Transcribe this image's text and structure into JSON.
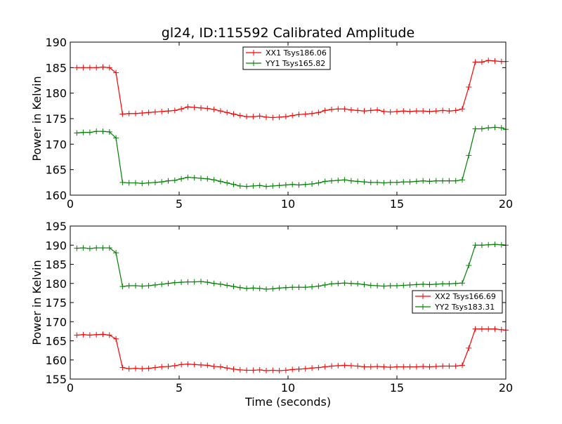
{
  "chart_data": [
    {
      "type": "line",
      "title": "gl24, ID:115592 Calibrated Amplitude",
      "xlabel": "",
      "ylabel": "Power in Kelvin",
      "xlim": [
        0,
        20
      ],
      "ylim": [
        160,
        190
      ],
      "xticks": [
        0,
        5,
        10,
        15,
        20
      ],
      "yticks": [
        160,
        165,
        170,
        175,
        180,
        185,
        190
      ],
      "grid": false,
      "legend_position": "top-center",
      "x": [
        0.3,
        0.6,
        0.9,
        1.2,
        1.5,
        1.8,
        2.1,
        2.4,
        2.7,
        3.0,
        3.3,
        3.6,
        3.9,
        4.2,
        4.5,
        4.8,
        5.1,
        5.4,
        5.7,
        6.0,
        6.3,
        6.6,
        6.9,
        7.2,
        7.5,
        7.8,
        8.1,
        8.4,
        8.7,
        9.0,
        9.3,
        9.6,
        9.9,
        10.2,
        10.5,
        10.8,
        11.1,
        11.4,
        11.7,
        12.0,
        12.3,
        12.6,
        12.9,
        13.2,
        13.5,
        13.8,
        14.1,
        14.4,
        14.7,
        15.0,
        15.3,
        15.6,
        15.9,
        16.2,
        16.5,
        16.8,
        17.1,
        17.4,
        17.7,
        18.0,
        18.3,
        18.6,
        18.9,
        19.2,
        19.5,
        19.8,
        20.0
      ],
      "series": [
        {
          "name": "XX1 Tsys186.06",
          "color": "#ff0000",
          "values": [
            185.0,
            185.0,
            185.0,
            185.0,
            185.1,
            185.0,
            184.0,
            175.9,
            176.0,
            176.0,
            176.1,
            176.2,
            176.3,
            176.4,
            176.5,
            176.6,
            176.9,
            177.3,
            177.2,
            177.1,
            177.0,
            176.8,
            176.5,
            176.2,
            175.9,
            175.6,
            175.4,
            175.4,
            175.5,
            175.3,
            175.2,
            175.3,
            175.4,
            175.6,
            175.8,
            175.9,
            176.0,
            176.2,
            176.6,
            176.8,
            176.9,
            176.9,
            176.7,
            176.6,
            176.5,
            176.6,
            176.7,
            176.4,
            176.3,
            176.4,
            176.5,
            176.4,
            176.5,
            176.5,
            176.4,
            176.5,
            176.6,
            176.5,
            176.6,
            176.9,
            181.2,
            186.1,
            186.1,
            186.4,
            186.3,
            186.2,
            186.2
          ]
        },
        {
          "name": "YY1 Tsys165.82",
          "color": "#008000",
          "values": [
            172.2,
            172.3,
            172.3,
            172.5,
            172.5,
            172.4,
            171.2,
            162.5,
            162.4,
            162.4,
            162.3,
            162.4,
            162.5,
            162.6,
            162.8,
            162.9,
            163.2,
            163.5,
            163.4,
            163.3,
            163.2,
            163.0,
            162.7,
            162.4,
            162.1,
            161.8,
            161.7,
            161.8,
            161.9,
            161.7,
            161.8,
            161.9,
            162.0,
            162.1,
            162.0,
            162.1,
            162.2,
            162.4,
            162.7,
            162.8,
            162.9,
            163.0,
            162.8,
            162.7,
            162.6,
            162.5,
            162.5,
            162.4,
            162.5,
            162.5,
            162.6,
            162.6,
            162.7,
            162.8,
            162.7,
            162.8,
            162.8,
            162.8,
            162.8,
            163.0,
            167.8,
            173.0,
            173.0,
            173.2,
            173.3,
            173.2,
            172.9
          ]
        }
      ]
    },
    {
      "type": "line",
      "title": "",
      "xlabel": "Time (seconds)",
      "ylabel": "Power in Kelvin",
      "xlim": [
        0,
        20
      ],
      "ylim": [
        155,
        195
      ],
      "xticks": [
        0,
        5,
        10,
        15,
        20
      ],
      "yticks": [
        155,
        160,
        165,
        170,
        175,
        180,
        185,
        190,
        195
      ],
      "grid": false,
      "legend_position": "center-right",
      "x": [
        0.3,
        0.6,
        0.9,
        1.2,
        1.5,
        1.8,
        2.1,
        2.4,
        2.7,
        3.0,
        3.3,
        3.6,
        3.9,
        4.2,
        4.5,
        4.8,
        5.1,
        5.4,
        5.7,
        6.0,
        6.3,
        6.6,
        6.9,
        7.2,
        7.5,
        7.8,
        8.1,
        8.4,
        8.7,
        9.0,
        9.3,
        9.6,
        9.9,
        10.2,
        10.5,
        10.8,
        11.1,
        11.4,
        11.7,
        12.0,
        12.3,
        12.6,
        12.9,
        13.2,
        13.5,
        13.8,
        14.1,
        14.4,
        14.7,
        15.0,
        15.3,
        15.6,
        15.9,
        16.2,
        16.5,
        16.8,
        17.1,
        17.4,
        17.7,
        18.0,
        18.3,
        18.6,
        18.9,
        19.2,
        19.5,
        19.8,
        20.0
      ],
      "series": [
        {
          "name": "XX2 Tsys166.69",
          "color": "#ff0000",
          "values": [
            166.5,
            166.6,
            166.5,
            166.6,
            166.7,
            166.5,
            165.5,
            158.0,
            157.7,
            157.8,
            157.7,
            157.8,
            158.0,
            158.2,
            158.3,
            158.5,
            158.8,
            158.9,
            158.8,
            158.7,
            158.6,
            158.3,
            158.2,
            157.9,
            157.6,
            157.4,
            157.3,
            157.3,
            157.4,
            157.2,
            157.3,
            157.2,
            157.3,
            157.5,
            157.6,
            157.7,
            157.9,
            158.0,
            158.2,
            158.4,
            158.5,
            158.6,
            158.5,
            158.4,
            158.2,
            158.2,
            158.3,
            158.2,
            158.1,
            158.2,
            158.2,
            158.2,
            158.2,
            158.3,
            158.2,
            158.3,
            158.4,
            158.4,
            158.4,
            158.6,
            163.1,
            168.1,
            168.1,
            168.1,
            168.1,
            167.9,
            167.8
          ]
        },
        {
          "name": "YY2 Tsys183.31",
          "color": "#008000",
          "values": [
            189.2,
            189.3,
            189.1,
            189.3,
            189.3,
            189.3,
            188.0,
            179.2,
            179.4,
            179.4,
            179.3,
            179.4,
            179.6,
            179.8,
            180.0,
            180.2,
            180.3,
            180.4,
            180.4,
            180.5,
            180.3,
            180.0,
            179.8,
            179.5,
            179.2,
            178.9,
            178.7,
            178.8,
            178.7,
            178.5,
            178.6,
            178.8,
            178.9,
            179.0,
            179.0,
            179.0,
            179.1,
            179.3,
            179.6,
            179.9,
            180.0,
            180.1,
            180.0,
            179.9,
            179.7,
            179.5,
            179.4,
            179.3,
            179.4,
            179.4,
            179.5,
            179.6,
            179.7,
            179.8,
            179.7,
            179.8,
            179.9,
            179.9,
            180.0,
            180.1,
            184.7,
            190.0,
            190.0,
            190.1,
            190.2,
            190.1,
            190.0
          ]
        }
      ]
    }
  ]
}
